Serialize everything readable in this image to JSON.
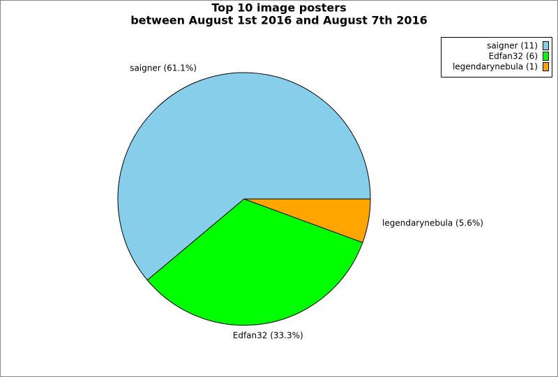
{
  "chart_data": {
    "type": "pie",
    "title": "Top 10 image posters",
    "subtitle": "between August 1st 2016 and August 7th 2016",
    "categories": [
      "saigner (11)",
      "Edfan32 (6)",
      "legendarynebula (1)"
    ],
    "values": [
      61.1,
      33.3,
      5.6
    ],
    "value_labels": [
      "saigner (61.1%)",
      "Edfan32 (33.3%)",
      "legendarynebula (5.6%)"
    ],
    "colors": [
      "#87ceeb",
      "#00ff00",
      "#ffa500"
    ],
    "legend": "upper right"
  }
}
